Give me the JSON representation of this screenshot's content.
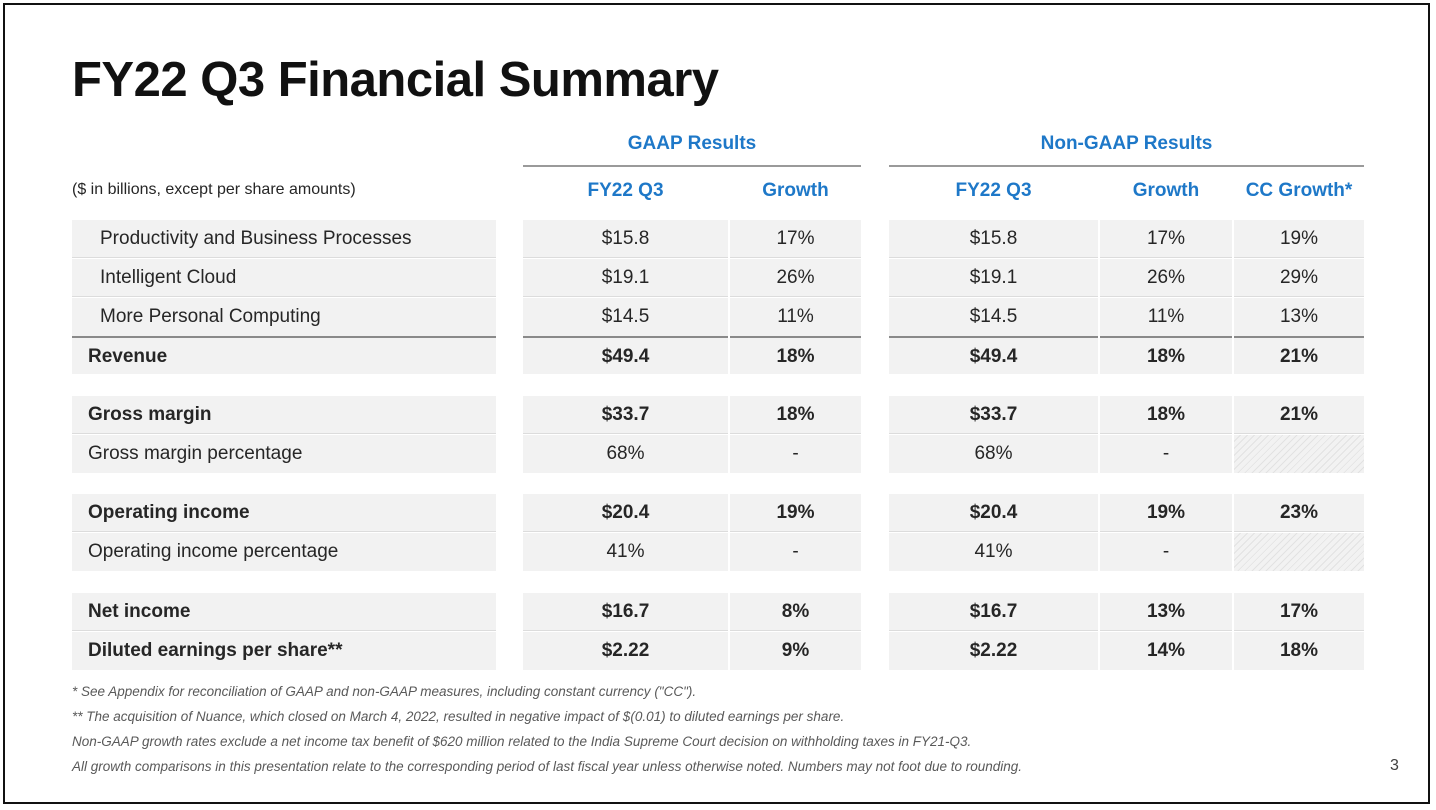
{
  "title": "FY22 Q3 Financial Summary",
  "units_note": "($ in billions, except per share amounts)",
  "groups": {
    "gaap": "GAAP Results",
    "non_gaap": "Non-GAAP Results"
  },
  "columns": [
    "FY22 Q3",
    "Growth",
    "FY22 Q3",
    "Growth",
    "CC Growth*"
  ],
  "rows": [
    {
      "label": "Productivity and Business Processes",
      "indent": true,
      "bold": false,
      "values": [
        "$15.8",
        "17%",
        "$15.8",
        "17%",
        "19%"
      ]
    },
    {
      "label": "Intelligent Cloud",
      "indent": true,
      "bold": false,
      "values": [
        "$19.1",
        "26%",
        "$19.1",
        "26%",
        "29%"
      ]
    },
    {
      "label": "More Personal Computing",
      "indent": true,
      "bold": false,
      "values": [
        "$14.5",
        "11%",
        "$14.5",
        "11%",
        "13%"
      ]
    },
    {
      "label": "Revenue",
      "indent": false,
      "bold": true,
      "values": [
        "$49.4",
        "18%",
        "$49.4",
        "18%",
        "21%"
      ]
    },
    {
      "label": "Gross margin",
      "indent": false,
      "bold": true,
      "values": [
        "$33.7",
        "18%",
        "$33.7",
        "18%",
        "21%"
      ]
    },
    {
      "label": "Gross margin percentage",
      "indent": false,
      "bold": false,
      "values": [
        "68%",
        "-",
        "68%",
        "-",
        null
      ]
    },
    {
      "label": "Operating income",
      "indent": false,
      "bold": true,
      "values": [
        "$20.4",
        "19%",
        "$20.4",
        "19%",
        "23%"
      ]
    },
    {
      "label": "Operating income percentage",
      "indent": false,
      "bold": false,
      "values": [
        "41%",
        "-",
        "41%",
        "-",
        null
      ]
    },
    {
      "label": "Net income",
      "indent": false,
      "bold": true,
      "values": [
        "$16.7",
        "8%",
        "$16.7",
        "13%",
        "17%"
      ]
    },
    {
      "label": "Diluted earnings per share**",
      "indent": false,
      "bold": true,
      "values": [
        "$2.22",
        "9%",
        "$2.22",
        "14%",
        "18%"
      ]
    }
  ],
  "footnotes": [
    "* See Appendix for reconciliation of GAAP and non-GAAP measures, including constant currency (\"CC\").",
    "** The acquisition of Nuance, which closed on March 4, 2022, resulted in negative impact of $(0.01) to diluted earnings per share.",
    "Non-GAAP growth rates exclude a net income tax benefit of $620 million related to the India Supreme Court decision on withholding taxes in FY21-Q3.",
    "All growth comparisons in this presentation relate to the corresponding period of last fiscal year unless otherwise noted. Numbers may not foot due to rounding."
  ],
  "page_number": "3",
  "colors": {
    "accent": "#1e78c8",
    "cell_bg": "#f2f2f2"
  }
}
